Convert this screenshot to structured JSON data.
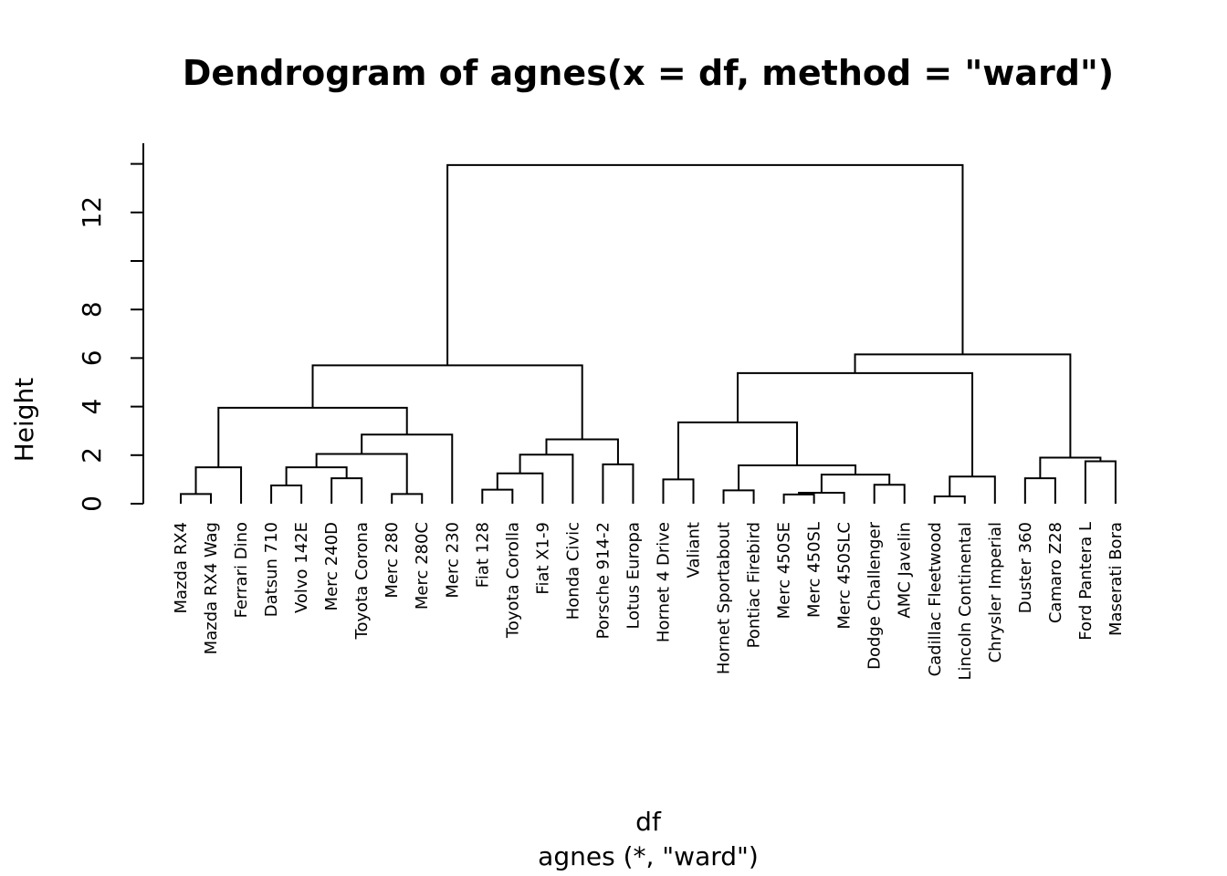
{
  "chart_data": {
    "type": "dendrogram",
    "title": "Dendrogram of  agnes(x = df, method = \"ward\")",
    "xlabel": "df",
    "sublabel": "agnes (*, \"ward\")",
    "ylabel": "Height",
    "ylim": [
      0,
      14
    ],
    "yticks": [
      0,
      2,
      4,
      6,
      8,
      10,
      12,
      14
    ],
    "ytick_labels": [
      "0",
      "2",
      "4",
      "6",
      "8",
      "",
      "12",
      ""
    ],
    "leaves": [
      "Mazda RX4",
      "Mazda RX4 Wag",
      "Ferrari Dino",
      "Datsun 710",
      "Volvo 142E",
      "Merc 240D",
      "Toyota Corona",
      "Merc 280",
      "Merc 280C",
      "Merc 230",
      "Fiat 128",
      "Toyota Corolla",
      "Fiat X1-9",
      "Honda Civic",
      "Porsche 914-2",
      "Lotus Europa",
      "Hornet 4 Drive",
      "Valiant",
      "Hornet Sportabout",
      "Pontiac Firebird",
      "Merc 450SE",
      "Merc 450SL",
      "Merc 450SLC",
      "Dodge Challenger",
      "AMC Javelin",
      "Cadillac Fleetwood",
      "Lincoln Continental",
      "Chrysler Imperial",
      "Duster 360",
      "Camaro Z28",
      "Ford Pantera L",
      "Maserati Bora"
    ],
    "merges": [
      {
        "left": "L0",
        "right": "L1",
        "height": 0.4
      },
      {
        "left": "M0",
        "right": "L2",
        "height": 1.5
      },
      {
        "left": "L3",
        "right": "L4",
        "height": 0.75
      },
      {
        "left": "L5",
        "right": "L6",
        "height": 1.05
      },
      {
        "left": "M2",
        "right": "M3",
        "height": 1.5
      },
      {
        "left": "L7",
        "right": "L8",
        "height": 0.4
      },
      {
        "left": "M4",
        "right": "M5",
        "height": 2.05
      },
      {
        "left": "M6",
        "right": "L9",
        "height": 2.85
      },
      {
        "left": "M1",
        "right": "M7",
        "height": 3.95
      },
      {
        "left": "L10",
        "right": "L11",
        "height": 0.58
      },
      {
        "left": "M9",
        "right": "L12",
        "height": 1.25
      },
      {
        "left": "M10",
        "right": "L13",
        "height": 2.02
      },
      {
        "left": "L14",
        "right": "L15",
        "height": 1.62
      },
      {
        "left": "M11",
        "right": "M12",
        "height": 2.65
      },
      {
        "left": "M8",
        "right": "M13",
        "height": 5.7
      },
      {
        "left": "L16",
        "right": "L17",
        "height": 1.0
      },
      {
        "left": "L18",
        "right": "L19",
        "height": 0.55
      },
      {
        "left": "L20",
        "right": "L21",
        "height": 0.38
      },
      {
        "left": "M17",
        "right": "L22",
        "height": 0.45
      },
      {
        "left": "L23",
        "right": "L24",
        "height": 0.78
      },
      {
        "left": "M18",
        "right": "M19",
        "height": 1.2
      },
      {
        "left": "M16",
        "right": "M20",
        "height": 1.58
      },
      {
        "left": "M15",
        "right": "M21",
        "height": 3.35
      },
      {
        "left": "L25",
        "right": "L26",
        "height": 0.3
      },
      {
        "left": "M23",
        "right": "L27",
        "height": 1.12
      },
      {
        "left": "M22",
        "right": "M24",
        "height": 5.38
      },
      {
        "left": "L28",
        "right": "L29",
        "height": 1.05
      },
      {
        "left": "L30",
        "right": "L31",
        "height": 1.75
      },
      {
        "left": "M26",
        "right": "M27",
        "height": 1.9
      },
      {
        "left": "M25",
        "right": "M28",
        "height": 6.15
      },
      {
        "left": "M14",
        "right": "M29",
        "height": 13.95
      }
    ]
  }
}
